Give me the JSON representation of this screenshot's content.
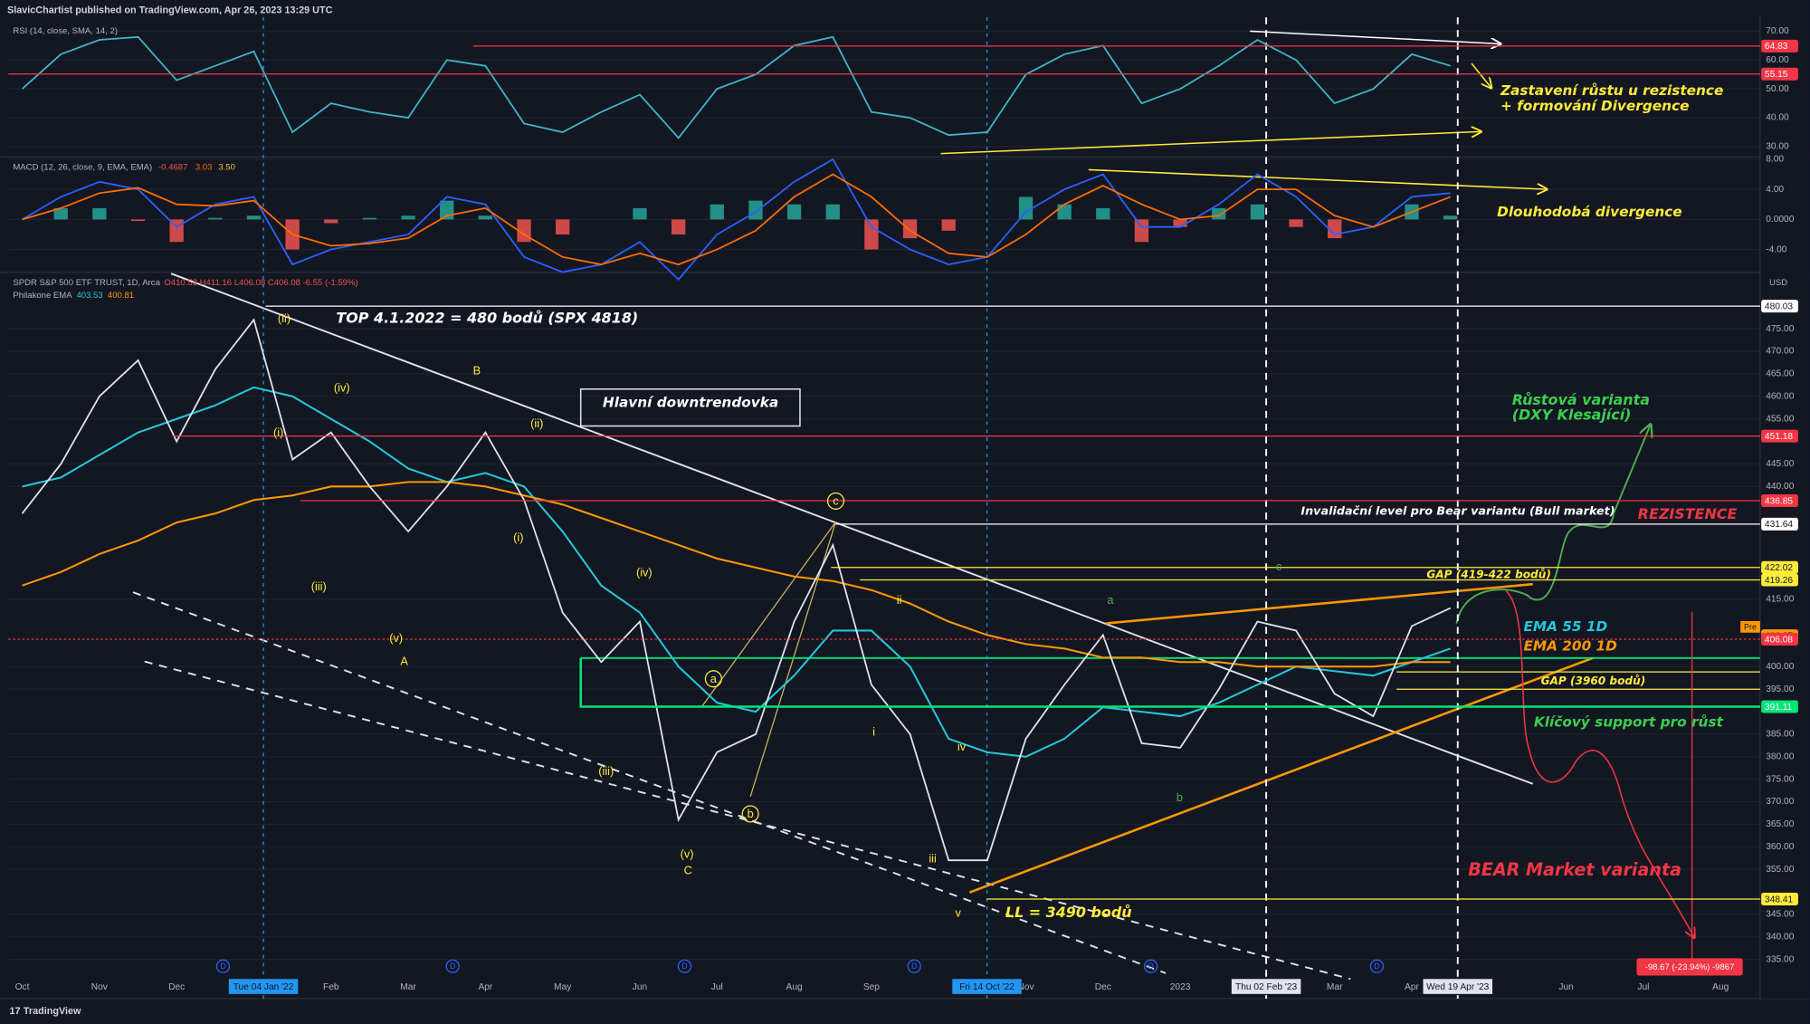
{
  "header": "SlavicChartist published on TradingView.com, Apr 26, 2023 13:29 UTC",
  "brand": "TradingView",
  "chart_data": [
    {
      "type": "line",
      "title": "RSI (14, close, SMA, 14, 2)",
      "color": "#3fb5c9",
      "values": [
        50,
        62,
        67,
        68,
        53,
        58,
        63,
        35,
        45,
        42,
        40,
        60,
        58,
        38,
        35,
        42,
        48,
        33,
        50,
        55,
        65,
        68,
        42,
        40,
        34,
        35,
        55,
        62,
        65,
        45,
        50,
        58,
        67,
        60,
        45,
        50,
        62,
        58,
        null,
        null,
        null,
        null,
        null,
        null,
        null
      ],
      "ylim": [
        26.8,
        74.8
      ],
      "yticks": [
        {
          "value": 70,
          "label": "70.00"
        },
        {
          "value": 60,
          "label": "60.00"
        },
        {
          "value": 50,
          "label": "50.00"
        },
        {
          "value": 40,
          "label": "40.00"
        },
        {
          "value": 30,
          "label": "30.00"
        }
      ],
      "grid": true,
      "levels": [
        {
          "value": 64.83,
          "color": "#f23645"
        },
        {
          "value": 55.15,
          "color": "#f23645"
        }
      ]
    },
    {
      "type": "macd",
      "title": "MACD (12, 26, close, 9, EMA, EMA)",
      "readouts": [
        "-0.4687",
        "3.03",
        "3.50"
      ],
      "positive_color": "#26a69a",
      "negative_color": "#ef5350",
      "histogram": [
        0,
        1.5,
        1.5,
        -0.2,
        -3,
        0.2,
        0.5,
        -4,
        -0.5,
        0.2,
        0.5,
        2.5,
        0.5,
        -3,
        -2,
        0,
        1.5,
        -2,
        2,
        2.5,
        2,
        2,
        -4,
        -2.5,
        -1.5,
        0,
        3,
        2,
        1.5,
        -3,
        -1,
        1.5,
        2,
        -1,
        -2.5,
        0,
        2,
        0.5,
        null,
        null,
        null,
        null,
        null,
        null,
        null
      ],
      "series": [
        {
          "color": "#2962ff",
          "values": [
            0,
            3,
            5,
            4,
            -1,
            2,
            3,
            -6,
            -4,
            -3,
            -2,
            3,
            2,
            -5,
            -7,
            -6,
            -3,
            -8,
            -2,
            1,
            5,
            8,
            -1,
            -4,
            -6,
            -5,
            1,
            4,
            6,
            -1,
            -1,
            2,
            6,
            3,
            -2,
            -1,
            3,
            3.5,
            null,
            null,
            null,
            null,
            null,
            null,
            null
          ]
        },
        {
          "color": "#ff6d00",
          "values": [
            0,
            1.5,
            3.5,
            4.2,
            2,
            1.8,
            2.5,
            -2,
            -3.5,
            -3.2,
            -2.5,
            0.5,
            1.5,
            -2,
            -5,
            -6,
            -4.5,
            -6,
            -4,
            -1.5,
            3,
            6,
            3,
            -1.5,
            -4.5,
            -5,
            -2,
            2,
            4.5,
            2,
            0,
            0.5,
            4,
            4,
            0.5,
            -1,
            1,
            3,
            null,
            null,
            null,
            null,
            null,
            null,
            null
          ]
        }
      ],
      "ylim": [
        -6.9,
        8.15
      ],
      "yticks": [
        {
          "value": 8,
          "label": "8.00"
        },
        {
          "value": 4,
          "label": "4.00"
        },
        {
          "value": 0,
          "label": "0.0000"
        },
        {
          "value": -4,
          "label": "-4.00"
        }
      ],
      "grid": true
    },
    {
      "type": "line",
      "title": "SPDR S&P 500 ETF TRUST, 1D, Arca",
      "readout": "O410.58 H411.16 L406.08 C406.08 -6.55 (-1.59%)",
      "indicator": "Philakone EMA",
      "indicator_readouts": [
        "403.53",
        "400.81"
      ],
      "unit": "USD",
      "categories": [
        "Oct",
        null,
        "Nov",
        null,
        "Dec",
        null,
        null,
        null,
        "Feb",
        null,
        "Mar",
        null,
        "Apr",
        null,
        "May",
        null,
        "Jun",
        null,
        "Jul",
        null,
        "Aug",
        null,
        "Sep",
        null,
        null,
        null,
        "Nov",
        null,
        "Dec",
        null,
        "2023",
        null,
        null,
        null,
        "Mar",
        null,
        "Apr",
        null,
        null,
        null,
        "Jun",
        null,
        "Jul",
        null,
        "Aug"
      ],
      "color": "#e0e3eb",
      "values": [
        434,
        445,
        460,
        468,
        450,
        466,
        477,
        446,
        452,
        440,
        430,
        440,
        452,
        437,
        412,
        401,
        410,
        366,
        381,
        385,
        410,
        427,
        396,
        385,
        357,
        357,
        384,
        396,
        407,
        383,
        382,
        395,
        410,
        408,
        394,
        389,
        409,
        413,
        null,
        null,
        null,
        null,
        null,
        null,
        null
      ],
      "series": [
        {
          "name": "EMA 55 1D",
          "color": "#26c6da",
          "values": [
            440,
            442,
            447,
            452,
            455,
            458,
            462,
            460,
            455,
            450,
            444,
            441,
            443,
            440,
            430,
            418,
            412,
            400,
            392,
            390,
            398,
            408,
            408,
            400,
            384,
            381,
            380,
            384,
            391,
            390,
            389,
            392,
            396,
            400,
            399,
            398,
            401,
            404,
            null,
            null,
            null,
            null,
            null,
            null,
            null
          ]
        },
        {
          "name": "EMA 200 1D",
          "color": "#ff9800",
          "values": [
            418,
            421,
            425,
            428,
            432,
            434,
            437,
            438,
            440,
            440,
            441,
            441,
            440,
            438,
            436,
            433,
            430,
            427,
            424,
            422,
            420,
            419,
            417,
            414,
            410,
            407,
            405,
            404,
            402,
            402,
            401,
            401,
            400,
            400,
            400,
            400,
            401,
            401,
            null,
            null,
            null,
            null,
            null,
            null,
            null
          ]
        }
      ],
      "ylim": [
        326.3,
        487
      ],
      "yticks": [
        {
          "value": 475,
          "label": "475.00"
        },
        {
          "value": 470,
          "label": "470.00"
        },
        {
          "value": 465,
          "label": "465.00"
        },
        {
          "value": 460,
          "label": "460.00"
        },
        {
          "value": 455,
          "label": "455.00"
        },
        {
          "value": 445,
          "label": "445.00"
        },
        {
          "value": 440,
          "label": "440.00"
        },
        {
          "value": 415,
          "label": "415.00"
        },
        {
          "value": 400,
          "label": "400.00"
        },
        {
          "value": 395,
          "label": "395.00"
        },
        {
          "value": 385,
          "label": "385.00"
        },
        {
          "value": 380,
          "label": "380.00"
        },
        {
          "value": 375,
          "label": "375.00"
        },
        {
          "value": 370,
          "label": "370.00"
        },
        {
          "value": 365,
          "label": "365.00"
        },
        {
          "value": 360,
          "label": "360.00"
        },
        {
          "value": 355,
          "label": "355.00"
        },
        {
          "value": 345,
          "label": "345.00"
        },
        {
          "value": 340,
          "label": "340.00"
        },
        {
          "value": 335,
          "label": "335.00"
        }
      ],
      "grid": true,
      "levels": [
        {
          "value": 480.03,
          "color": "#ffffff"
        },
        {
          "value": 451.18,
          "color": "#f23645"
        },
        {
          "value": 436.85,
          "color": "#f23645"
        },
        {
          "value": 431.64,
          "color": "#ffffff"
        },
        {
          "value": 422.02,
          "color": "#ffeb3b"
        },
        {
          "value": 419.26,
          "color": "#ffeb3b"
        },
        {
          "value": 406.87,
          "color": "#ff9800"
        },
        {
          "value": 406.08,
          "color": "#f23645"
        },
        {
          "value": 391.11,
          "color": "#00e676"
        },
        {
          "value": 348.41,
          "color": "#ffeb3b"
        }
      ],
      "pre_tag": "Pre",
      "cursor_dates": [
        "Tue 04 Jan '22",
        "Fri 14 Oct '22",
        "Thu 02 Feb '23",
        "Wed 19 Apr '23"
      ],
      "dividend_label": "D",
      "wave_labels": [
        "(ii)",
        "(iv)",
        "(i)",
        "(iii)",
        "(v)",
        "A",
        "B",
        "(ii)",
        "(i)",
        "(iv)",
        "(iii)",
        "(v)",
        "C",
        "a",
        "b",
        "c",
        "ii",
        "i",
        "iv",
        "iii",
        "v",
        "a",
        "b",
        "c"
      ],
      "measure": "-98.67 (-23.94%) -9867"
    }
  ],
  "annotations": [
    "TOP 4.1.2022 = 480 bodů (SPX 4818)",
    "Hlavní downtrendovka",
    "Invalidační level pro Bear variantu (Bull market)",
    "REZISTENCE",
    "Růstová varianta",
    "(DXY Klesající)",
    "GAP (419-422 bodů)",
    "GAP (3960 bodů)",
    "Klíčový support pro růst",
    "BEAR Market varianta",
    "LL = 3490 bodů",
    "Zastavení růstu u rezistence",
    "+ formování Divergence",
    "Dlouhodobá divergence"
  ]
}
